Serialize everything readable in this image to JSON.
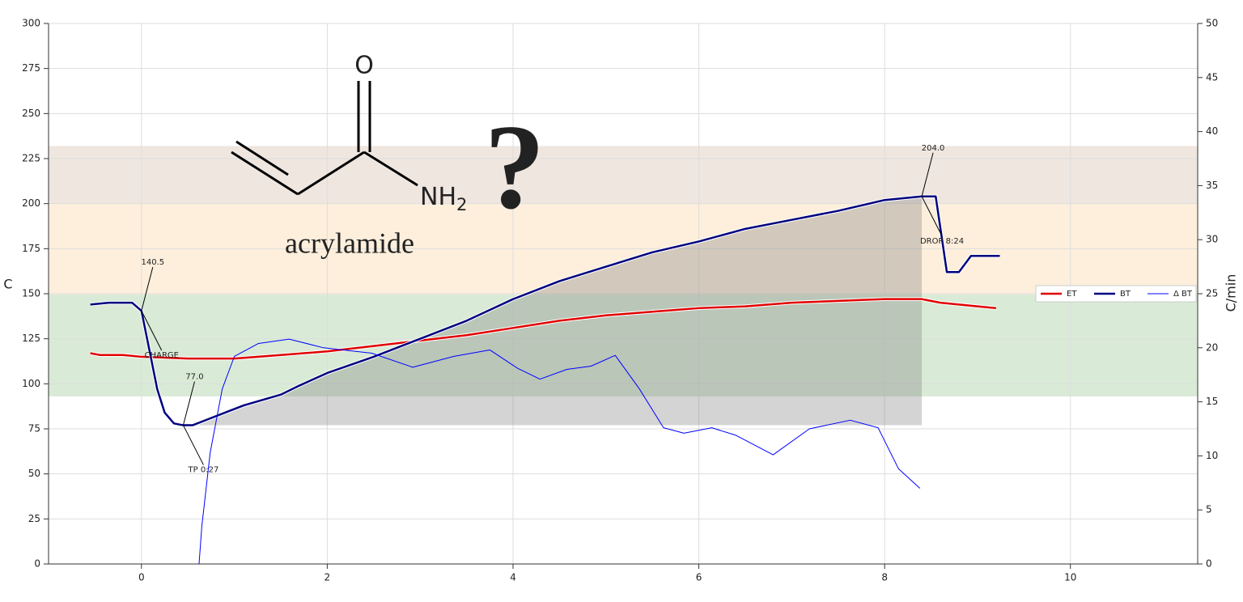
{
  "chart_data": {
    "type": "line",
    "ylabel": "C",
    "y2label": "C/min",
    "xlim": [
      -1,
      11.37
    ],
    "xticks": [
      0,
      2,
      4,
      6,
      8,
      10
    ],
    "ylim": [
      0,
      300
    ],
    "yticks": [
      0,
      25,
      50,
      75,
      100,
      125,
      150,
      175,
      200,
      225,
      250,
      275,
      300
    ],
    "y2lim": [
      0,
      50
    ],
    "y2ticks": [
      0,
      5,
      10,
      15,
      20,
      25,
      30,
      35,
      40,
      45,
      50
    ],
    "grid": true,
    "legend": "center right",
    "bands": [
      {
        "from": 200,
        "to": 232,
        "color": "#efe6e0"
      },
      {
        "from": 149.5,
        "to": 200,
        "color": "#fdefdc"
      },
      {
        "from": 93,
        "to": 149.5,
        "color": "#d9ebd6"
      }
    ],
    "series": [
      {
        "name": "ET",
        "color": "#e00000",
        "width": 2.5,
        "x": [
          -0.55,
          -0.45,
          -0.2,
          0.0,
          0.5,
          1.0,
          1.5,
          2.0,
          2.5,
          3.0,
          3.5,
          4.0,
          4.5,
          5.0,
          5.5,
          6.0,
          6.5,
          7.0,
          7.5,
          8.0,
          8.4,
          8.6,
          9.0,
          9.2
        ],
        "values": [
          117,
          116,
          116,
          115,
          114,
          114,
          116,
          118,
          121,
          124,
          127,
          131,
          135,
          138,
          140,
          142,
          143,
          145,
          146,
          147,
          147,
          145,
          143,
          142
        ]
      },
      {
        "name": "BT",
        "color": "#00007f",
        "width": 2.5,
        "x": [
          -0.55,
          -0.35,
          -0.1,
          0.0,
          0.1,
          0.17,
          0.25,
          0.35,
          0.45,
          0.55,
          0.7,
          0.9,
          1.1,
          1.5,
          1.7,
          2.0,
          2.5,
          3.0,
          3.5,
          4.0,
          4.5,
          5.0,
          5.5,
          6.0,
          6.5,
          7.0,
          7.5,
          8.0,
          8.4,
          8.55,
          8.67,
          8.8,
          8.93,
          9.24
        ],
        "values": [
          144,
          145,
          145,
          140.5,
          115,
          97,
          84,
          78,
          77,
          77,
          80,
          84,
          88,
          94,
          99,
          106,
          115,
          125,
          135,
          147,
          157,
          165,
          173,
          179,
          186,
          191,
          196,
          202,
          204,
          204,
          162,
          162,
          171,
          171
        ]
      },
      {
        "name": "Δ BT",
        "color": "#0000ff",
        "width": 1,
        "axis": "y2",
        "x": [
          0.62,
          0.65,
          0.74,
          0.87,
          1.0,
          1.26,
          1.59,
          1.96,
          2.48,
          2.92,
          3.36,
          3.75,
          4.05,
          4.29,
          4.58,
          4.84,
          5.1,
          5.36,
          5.62,
          5.84,
          6.14,
          6.4,
          6.8,
          7.19,
          7.63,
          7.93,
          8.15,
          8.38
        ],
        "values": [
          0,
          3.5,
          10.3,
          16.2,
          19.2,
          20.4,
          20.8,
          20,
          19.5,
          18.2,
          19.2,
          19.8,
          18.1,
          17.1,
          18,
          18.3,
          19.3,
          16.2,
          12.6,
          12.1,
          12.6,
          11.9,
          10.1,
          12.5,
          13.3,
          12.6,
          8.8,
          7
        ]
      }
    ],
    "events": [
      {
        "label": "CHARGE",
        "x": 0,
        "y": 140.5
      },
      {
        "label": "TP 0:27",
        "x": 0.45,
        "y": {
          "value": 77,
          "label": "77.0"
        }
      },
      {
        "label": "DROP 8:24",
        "x": 8.4,
        "y": {
          "value": 204,
          "label": "204.0"
        }
      }
    ]
  },
  "illustration": {
    "oxygen": "O",
    "amine": "NH",
    "amine_subscript": "2",
    "name": "acrylamide",
    "mark": "?"
  }
}
